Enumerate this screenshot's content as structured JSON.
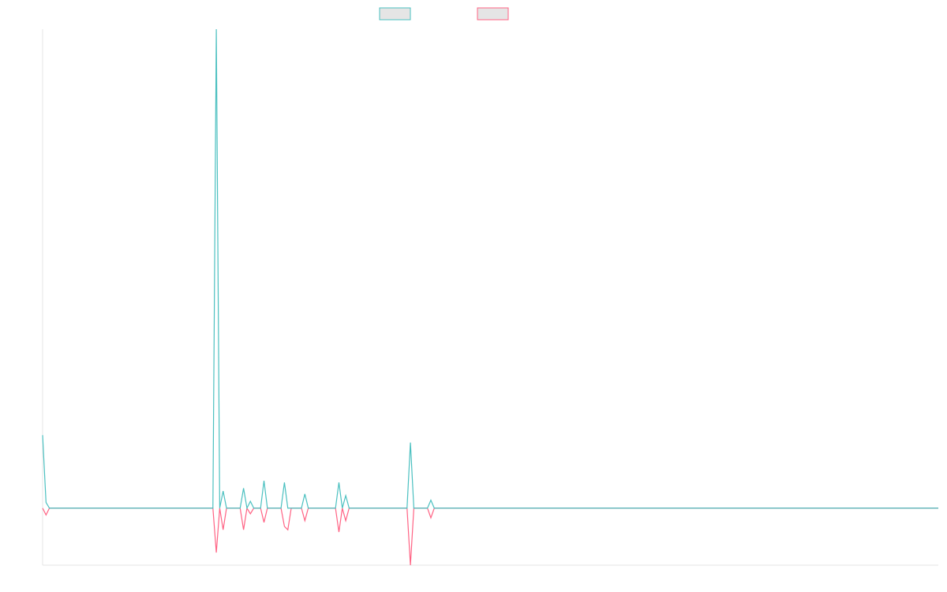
{
  "chart_data": {
    "type": "line",
    "title": "",
    "xlabel": "",
    "ylabel": "",
    "grid": false,
    "legend_position": "top-center",
    "y_axis_visible": false,
    "x_axis_visible": false,
    "x_count": 264,
    "ylim": [
      -100,
      840
    ],
    "series": [
      {
        "color": "#4bc0c0",
        "fill": "#e5e5e5",
        "points": [
          [
            0,
            128
          ],
          [
            1,
            10
          ],
          [
            2,
            0
          ],
          [
            50,
            0
          ],
          [
            51,
            840
          ],
          [
            52,
            0
          ],
          [
            53,
            30
          ],
          [
            54,
            0
          ],
          [
            58,
            0
          ],
          [
            59,
            35
          ],
          [
            60,
            0
          ],
          [
            61,
            12
          ],
          [
            62,
            0
          ],
          [
            64,
            0
          ],
          [
            65,
            48
          ],
          [
            66,
            0
          ],
          [
            70,
            0
          ],
          [
            71,
            45
          ],
          [
            72,
            0
          ],
          [
            76,
            0
          ],
          [
            77,
            25
          ],
          [
            78,
            0
          ],
          [
            86,
            0
          ],
          [
            87,
            45
          ],
          [
            88,
            0
          ],
          [
            89,
            22
          ],
          [
            90,
            0
          ],
          [
            107,
            0
          ],
          [
            108,
            115
          ],
          [
            109,
            0
          ],
          [
            113,
            0
          ],
          [
            114,
            14
          ],
          [
            115,
            0
          ],
          [
            263,
            0
          ]
        ]
      },
      {
        "color": "#ff6384",
        "fill": "#e5e5e5",
        "points": [
          [
            0,
            0
          ],
          [
            1,
            -12
          ],
          [
            2,
            0
          ],
          [
            50,
            0
          ],
          [
            51,
            -78
          ],
          [
            52,
            0
          ],
          [
            53,
            -38
          ],
          [
            54,
            0
          ],
          [
            58,
            0
          ],
          [
            59,
            -38
          ],
          [
            60,
            0
          ],
          [
            61,
            -10
          ],
          [
            62,
            0
          ],
          [
            64,
            0
          ],
          [
            65,
            -25
          ],
          [
            66,
            0
          ],
          [
            70,
            0
          ],
          [
            71,
            -32
          ],
          [
            72,
            -38
          ],
          [
            73,
            0
          ],
          [
            76,
            0
          ],
          [
            77,
            -22
          ],
          [
            78,
            0
          ],
          [
            86,
            0
          ],
          [
            87,
            -42
          ],
          [
            88,
            0
          ],
          [
            89,
            -22
          ],
          [
            90,
            0
          ],
          [
            107,
            0
          ],
          [
            108,
            -100
          ],
          [
            109,
            0
          ],
          [
            113,
            0
          ],
          [
            114,
            -17
          ],
          [
            115,
            0
          ],
          [
            263,
            0
          ]
        ]
      }
    ]
  }
}
